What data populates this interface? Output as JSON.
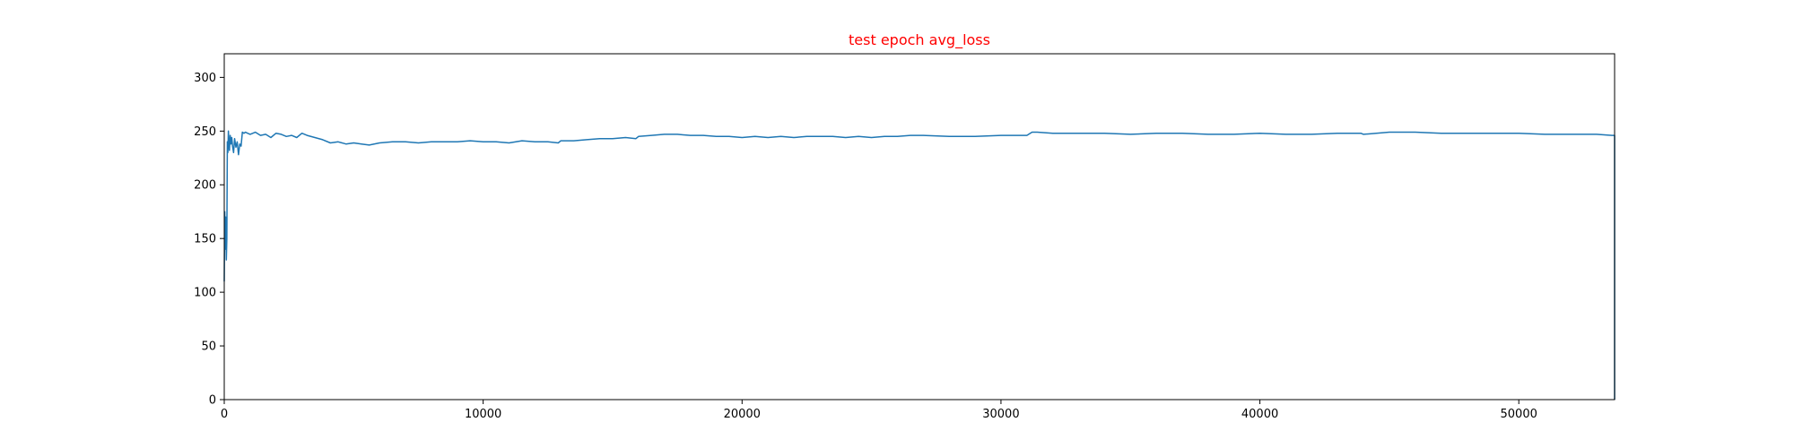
{
  "chart_data": {
    "type": "line",
    "title": "test epoch avg_loss",
    "title_color": "#ff0000",
    "xlabel": "",
    "ylabel": "",
    "xlim": [
      0,
      53700
    ],
    "ylim": [
      0,
      322
    ],
    "grid": false,
    "x_ticks": [
      0,
      10000,
      20000,
      30000,
      40000,
      50000
    ],
    "y_ticks": [
      0,
      50,
      100,
      150,
      200,
      250,
      300
    ],
    "x_tick_labels": [
      "0",
      "10000",
      "20000",
      "30000",
      "40000",
      "50000"
    ],
    "y_tick_labels": [
      "0",
      "50",
      "100",
      "150",
      "200",
      "250",
      "300"
    ],
    "series": [
      {
        "color": "#1f77b4",
        "x": [
          0,
          20,
          40,
          60,
          80,
          100,
          120,
          140,
          160,
          180,
          200,
          230,
          260,
          290,
          320,
          360,
          400,
          450,
          500,
          550,
          600,
          650,
          700,
          760,
          820,
          900,
          1000,
          1200,
          1400,
          1600,
          1800,
          2000,
          2200,
          2400,
          2600,
          2800,
          3000,
          3200,
          3500,
          3800,
          4100,
          4400,
          4700,
          5000,
          5300,
          5600,
          6000,
          6500,
          7000,
          7500,
          8000,
          8500,
          9000,
          9500,
          10000,
          10500,
          11000,
          11500,
          12000,
          12500,
          12900,
          13000,
          13500,
          14000,
          14500,
          15000,
          15500,
          15900,
          16000,
          16500,
          17000,
          17500,
          18000,
          18500,
          19000,
          19500,
          20000,
          20500,
          21000,
          21500,
          22000,
          22500,
          23000,
          23500,
          24000,
          24500,
          25000,
          25500,
          26000,
          26500,
          27000,
          28000,
          29000,
          30000,
          31000,
          31200,
          31400,
          32000,
          33000,
          34000,
          35000,
          36000,
          37000,
          38000,
          39000,
          40000,
          41000,
          41800,
          42000,
          43000,
          43900,
          44000,
          45000,
          46000,
          47000,
          48000,
          49000,
          50000,
          51000,
          52000,
          53000,
          53600,
          53700,
          53700
        ],
        "values": [
          110,
          175,
          140,
          170,
          130,
          150,
          240,
          230,
          250,
          240,
          232,
          246,
          238,
          244,
          236,
          230,
          243,
          235,
          240,
          228,
          238,
          236,
          249,
          248,
          249,
          248,
          247,
          249,
          246,
          247,
          244,
          248,
          247,
          245,
          246,
          244,
          248,
          246,
          244,
          242,
          239,
          240,
          238,
          239,
          238,
          237,
          239,
          240,
          240,
          239,
          240,
          240,
          240,
          241,
          240,
          240,
          239,
          241,
          240,
          240,
          239,
          241,
          241,
          242,
          243,
          243,
          244,
          243,
          245,
          246,
          247,
          247,
          246,
          246,
          245,
          245,
          244,
          245,
          244,
          245,
          244,
          245,
          245,
          245,
          244,
          245,
          244,
          245,
          245,
          246,
          246,
          245,
          245,
          246,
          246,
          249,
          249,
          248,
          248,
          248,
          247,
          248,
          248,
          247,
          247,
          248,
          247,
          247,
          247,
          248,
          248,
          247,
          249,
          249,
          248,
          248,
          248,
          248,
          247,
          247,
          247,
          246,
          246,
          0
        ]
      }
    ]
  }
}
